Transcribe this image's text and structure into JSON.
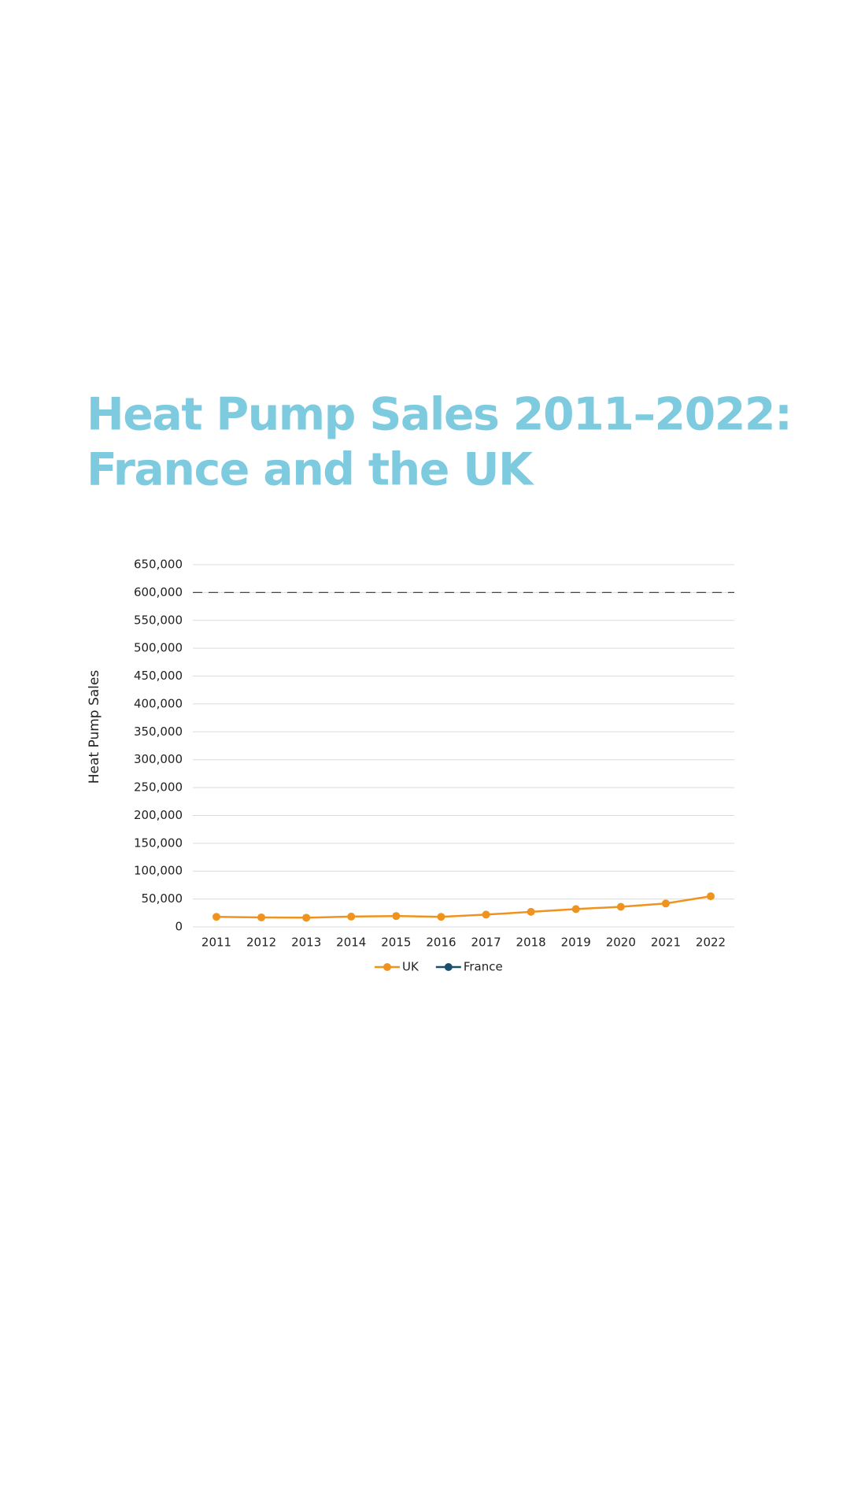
{
  "chart_data": {
    "type": "line",
    "title": [
      "Heat Pump Sales 2011–2022:",
      "France and the UK"
    ],
    "y_label": "Heat Pump Sales",
    "categories": [
      "2011",
      "2012",
      "2013",
      "2014",
      "2015",
      "2016",
      "2017",
      "2018",
      "2019",
      "2020",
      "2021",
      "2022"
    ],
    "series": [
      {
        "name": "UK",
        "color": "#f0931e",
        "values": [
          18000,
          17000,
          16500,
          18500,
          19500,
          18000,
          22000,
          27000,
          32000,
          36000,
          42000,
          55000
        ]
      },
      {
        "name": "France",
        "color": "#1b4f6e",
        "values": [
          null,
          null,
          null,
          null,
          null,
          null,
          null,
          null,
          null,
          null,
          null,
          null
        ]
      }
    ],
    "ylim": [
      0,
      650000
    ],
    "yticks": [
      0,
      {
        "value": 50000,
        "label": "50,000"
      },
      {
        "value": 100000,
        "label": "100,000"
      },
      {
        "value": 150000,
        "label": "150,000"
      },
      {
        "value": 200000,
        "label": "200,000"
      },
      {
        "value": 250000,
        "label": "250,000"
      },
      {
        "value": 300000,
        "label": "300,000"
      },
      {
        "value": 350000,
        "label": "350,000"
      },
      {
        "value": 400000,
        "label": "400,000"
      },
      {
        "value": 450000,
        "label": "450,000"
      },
      {
        "value": 500000,
        "label": "500,000"
      },
      {
        "value": 550000,
        "label": "550,000"
      },
      {
        "value": 600000,
        "label": "600,000"
      },
      {
        "value": 650000,
        "label": "650,000"
      }
    ],
    "reference_line": 600000,
    "grid": true,
    "legend": "bottom"
  }
}
